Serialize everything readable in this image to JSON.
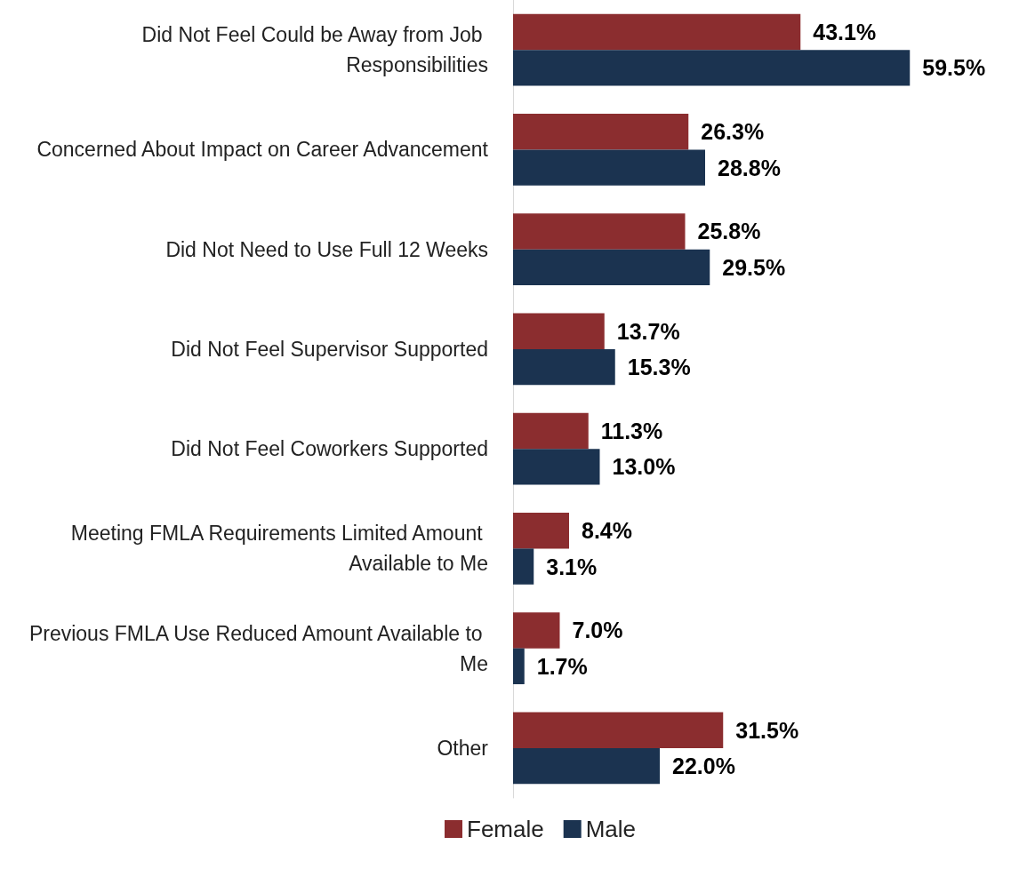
{
  "chart_data": {
    "type": "bar",
    "orientation": "horizontal",
    "legend": "bottom",
    "categories": [
      "Did Not Feel Could be Away from Job Responsibilities",
      "Concerned About Impact on Career Advancement",
      "Did Not Need to Use Full 12 Weeks",
      "Did Not Feel Supervisor Supported",
      "Did Not Feel Coworkers Supported",
      "Meeting FMLA Requirements Limited Amount Available to Me",
      "Previous FMLA Use Reduced Amount Available to Me",
      "Other"
    ],
    "series": [
      {
        "name": "Female",
        "color": "#8b2d2f",
        "values": [
          43.1,
          26.3,
          25.8,
          13.7,
          11.3,
          8.4,
          7.0,
          31.5
        ],
        "value_labels": [
          "43.1%",
          "26.3%",
          "25.8%",
          "13.7%",
          "11.3%",
          "8.4%",
          "7.0%",
          "31.5%"
        ]
      },
      {
        "name": "Male",
        "color": "#1b3350",
        "values": [
          59.5,
          28.8,
          29.5,
          15.3,
          13.0,
          3.1,
          1.7,
          22.0
        ],
        "value_labels": [
          "59.5%",
          "28.8%",
          "29.5%",
          "15.3%",
          "13.0%",
          "3.1%",
          "1.7%",
          "22.0%"
        ]
      }
    ]
  }
}
